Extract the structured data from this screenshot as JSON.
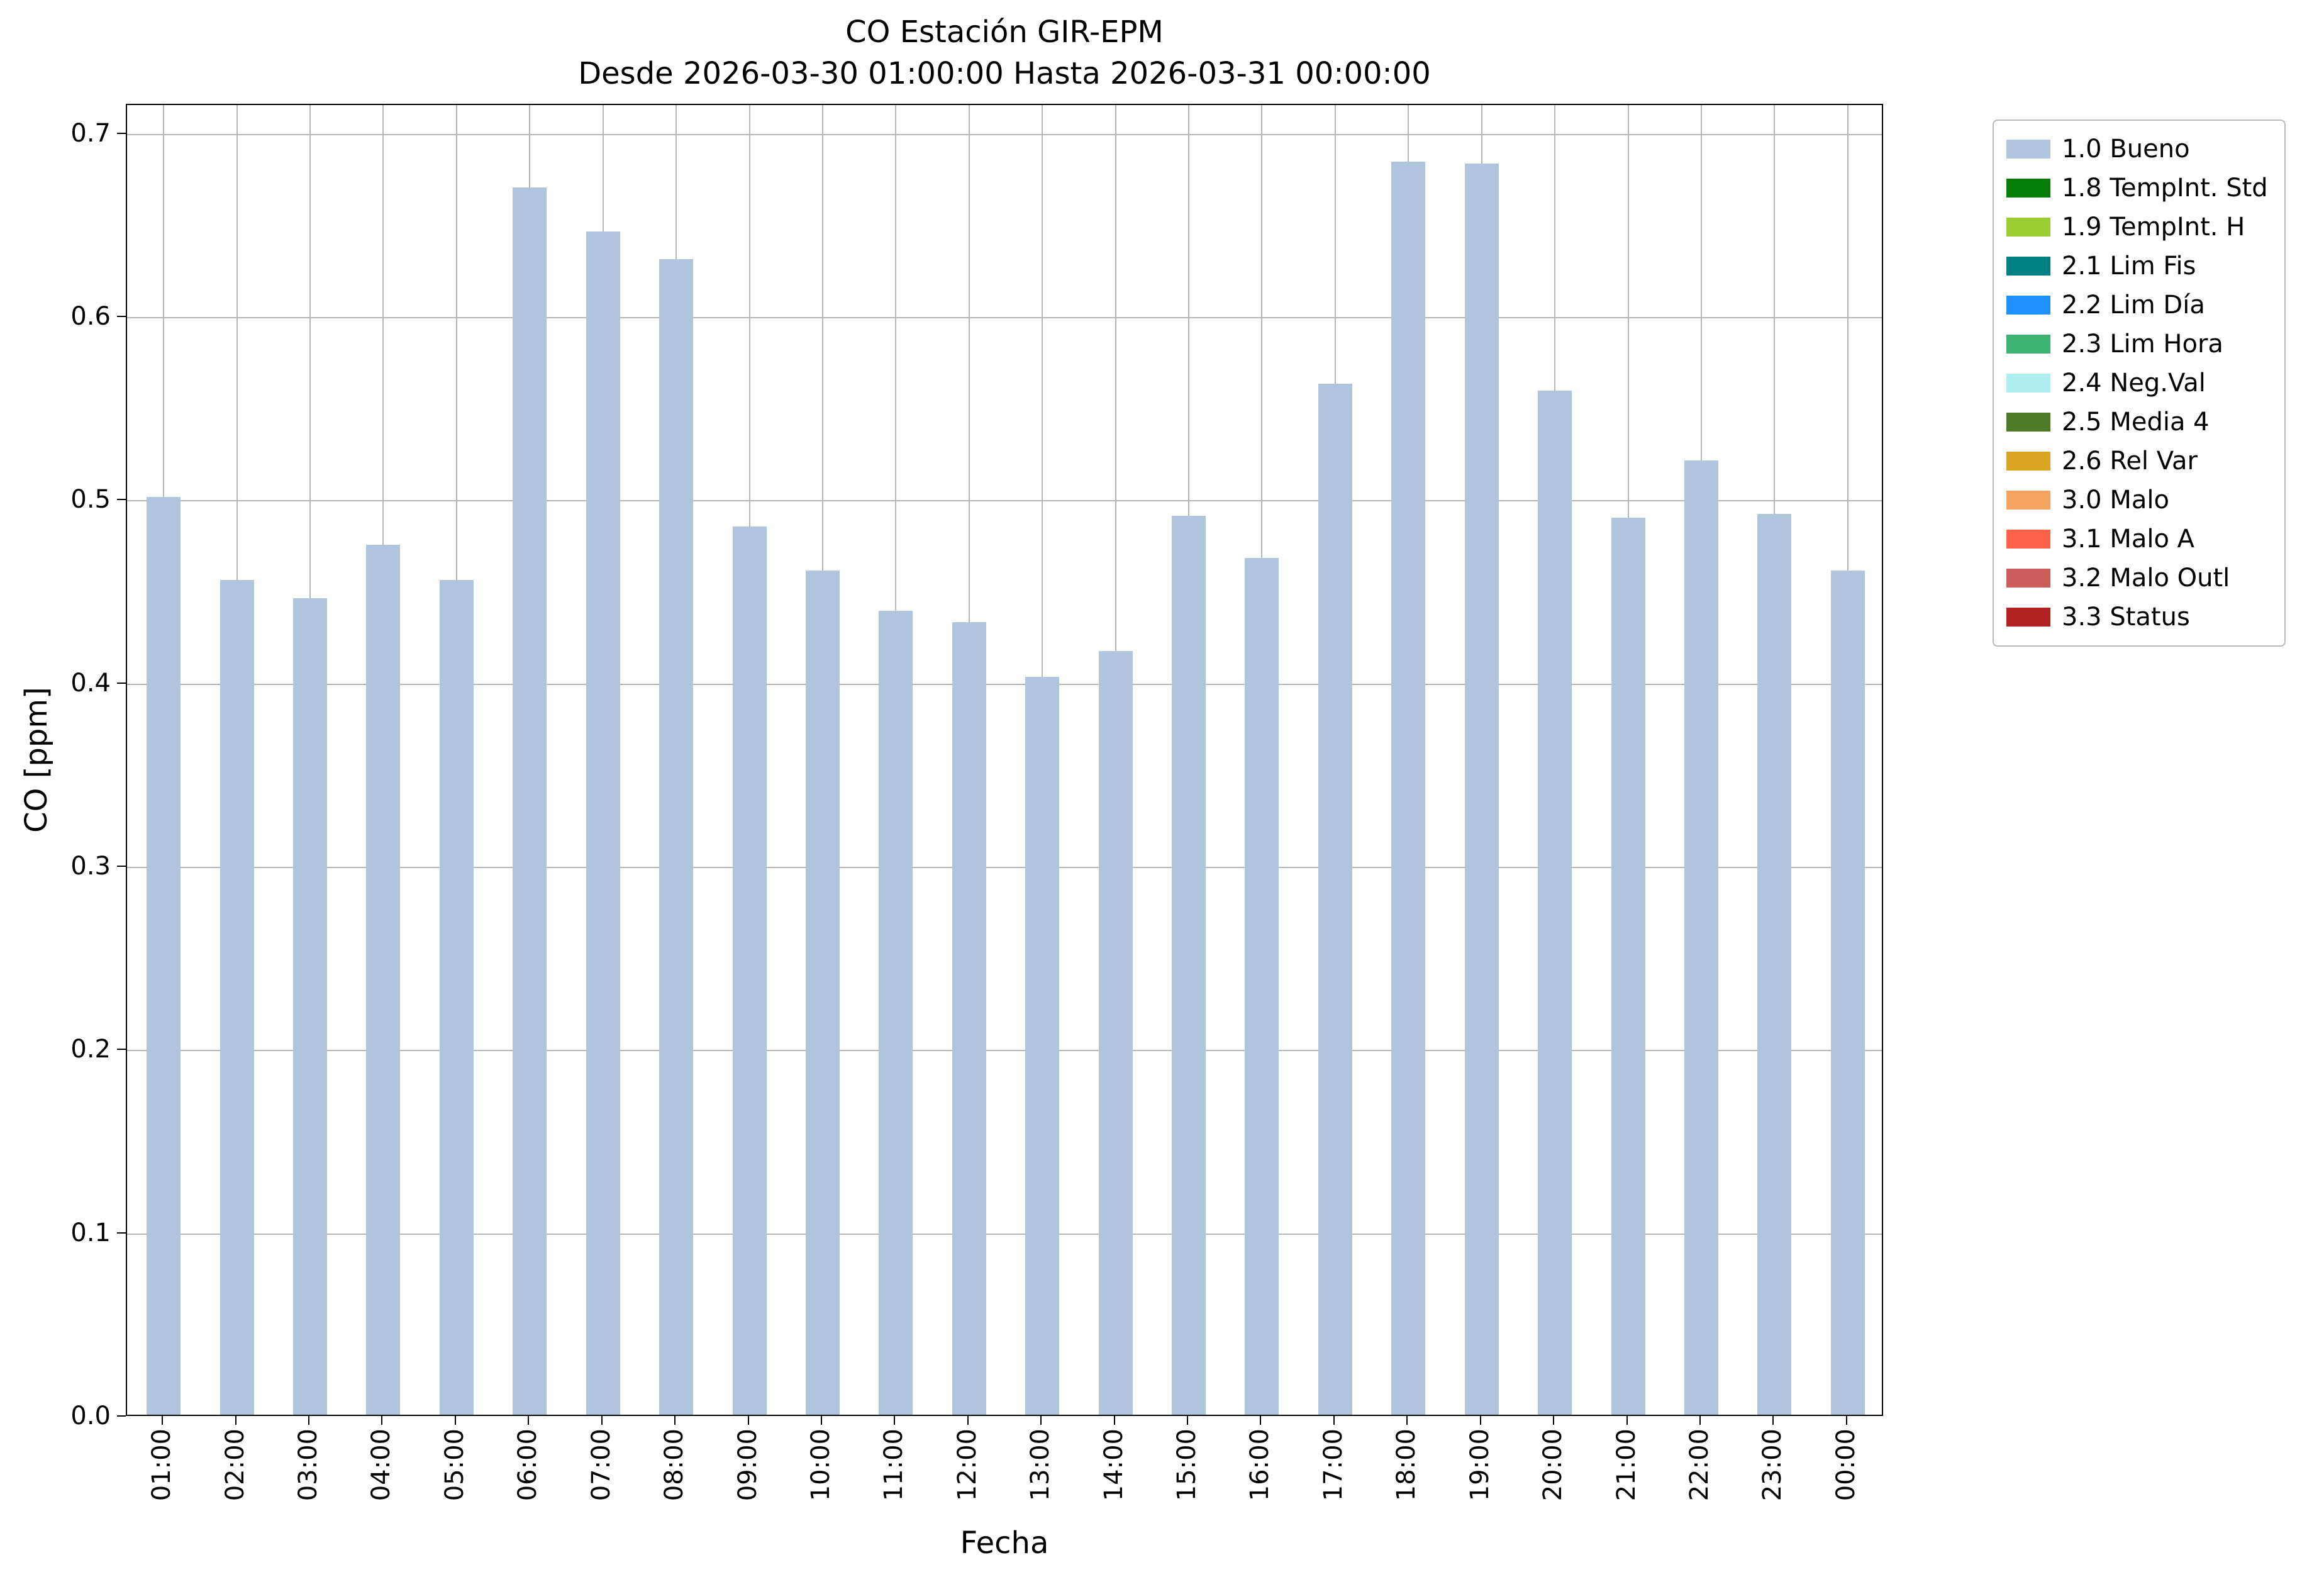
{
  "chart_data": {
    "type": "bar",
    "title": "CO Estación GIR-EPM",
    "subtitle": "Desde 2026-03-30 01:00:00 Hasta 2026-03-31 00:00:00",
    "xlabel": "Fecha",
    "ylabel": "CO [ppm]",
    "categories": [
      "01:00",
      "02:00",
      "03:00",
      "04:00",
      "05:00",
      "06:00",
      "07:00",
      "08:00",
      "09:00",
      "10:00",
      "11:00",
      "12:00",
      "13:00",
      "14:00",
      "15:00",
      "16:00",
      "17:00",
      "18:00",
      "19:00",
      "20:00",
      "21:00",
      "22:00",
      "23:00",
      "00:00"
    ],
    "values": [
      0.502,
      0.457,
      0.447,
      0.476,
      0.457,
      0.671,
      0.647,
      0.632,
      0.486,
      0.462,
      0.44,
      0.434,
      0.404,
      0.418,
      0.492,
      0.469,
      0.564,
      0.685,
      0.684,
      0.56,
      0.491,
      0.522,
      0.493,
      0.462
    ],
    "ylim": [
      0,
      0.716
    ],
    "yticks": [
      0.0,
      0.1,
      0.2,
      0.3,
      0.4,
      0.5,
      0.6,
      0.7
    ],
    "grid": true,
    "grid_color": "#b5b5b5",
    "bar_color": "#b0c4de",
    "legend": {
      "position": "outside-top-right",
      "entries": [
        {
          "label": "1.0 Bueno",
          "color": "#b0c4de"
        },
        {
          "label": "1.8 TempInt. Std",
          "color": "#067d06"
        },
        {
          "label": "1.9 TempInt. H",
          "color": "#9acd32"
        },
        {
          "label": "2.1 Lim Fis",
          "color": "#008080"
        },
        {
          "label": "2.2 Lim Día",
          "color": "#1e90ff"
        },
        {
          "label": "2.3 Lim Hora",
          "color": "#3cb371"
        },
        {
          "label": "2.4 Neg.Val",
          "color": "#afeeee"
        },
        {
          "label": "2.5 Media 4",
          "color": "#4f7a28"
        },
        {
          "label": "2.6 Rel Var",
          "color": "#daa520"
        },
        {
          "label": "3.0 Malo",
          "color": "#f4a460"
        },
        {
          "label": "3.1 Malo A",
          "color": "#ff6347"
        },
        {
          "label": "3.2 Malo Outl",
          "color": "#cd5c5c"
        },
        {
          "label": "3.3 Status",
          "color": "#b22222"
        }
      ]
    }
  }
}
